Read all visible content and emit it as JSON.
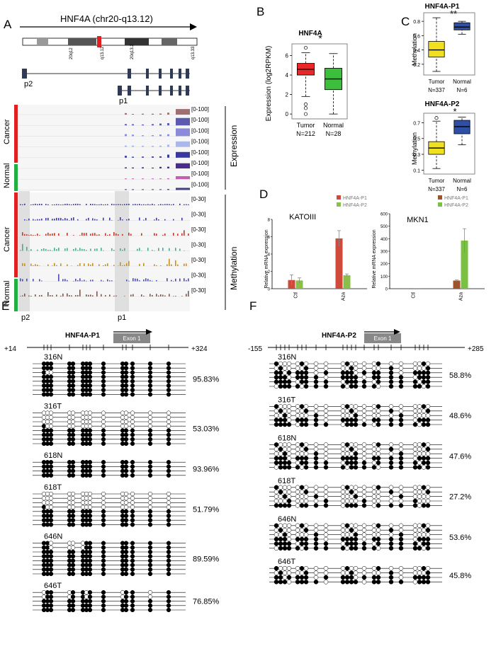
{
  "panel_labels": {
    "a": "A",
    "b": "B",
    "c": "C",
    "d": "D",
    "e": "E",
    "f": "F"
  },
  "panel_a": {
    "title": "HNF4A (chr20-q13.12)",
    "bands": [
      "20q12",
      "q13.12",
      "20q13.2",
      "q13.33"
    ],
    "promoters": {
      "p2": "p2",
      "p1": "p1"
    },
    "groups": {
      "cancer": "Cancer",
      "normal": "Normal"
    },
    "sections": {
      "expression": "Expression",
      "methylation": "Methylation"
    },
    "expr_range": "[0-100]",
    "meth_range": "[0-30]",
    "expression_track_colors": [
      "#a07070",
      "#5a5ab0",
      "#8a8ad8",
      "#aab8e8",
      "#3838a0",
      "#4a2c8a",
      "#c060b0",
      "#404080"
    ],
    "methylation_track_colors": [
      "#3a3aa8",
      "#3a3aa8",
      "#c03a2a",
      "#40b090",
      "#c89020",
      "#4a4ab0",
      "#7a5a50"
    ]
  },
  "panel_b": {
    "title": "HNF4A",
    "ylabel": "Expression (log2RPKM)",
    "significance": "*",
    "chart_data": {
      "type": "box",
      "title": "HNF4A",
      "ylabel": "Expression (log2RPKM)",
      "ylim": [
        -0.5,
        7.2
      ],
      "yticks": [
        0,
        2,
        4,
        6
      ],
      "groups": [
        {
          "name": "Tumor",
          "n": "N=212",
          "color": "#e8282a",
          "whisker_low": 1.8,
          "q1": 4.0,
          "median": 4.6,
          "q3": 5.2,
          "whisker_high": 6.3,
          "outliers": [
            1.0,
            0.6,
            6.8,
            0.0
          ]
        },
        {
          "name": "Normal",
          "n": "N=28",
          "color": "#3cc03c",
          "whisker_low": 0.0,
          "q1": 2.5,
          "median": 3.6,
          "q3": 4.7,
          "whisker_high": 6.2,
          "outliers": []
        }
      ]
    }
  },
  "panel_c": {
    "charts": [
      {
        "title": "HNF4A-P1",
        "significance": "**",
        "ylabel": "Methylation",
        "ylim": [
          0.05,
          0.92
        ],
        "yticks": [
          0.2,
          0.4,
          0.6,
          0.8
        ],
        "groups": [
          {
            "name": "Tumor",
            "n": "N=337",
            "color": "#f0e020",
            "whisker_low": 0.1,
            "q1": 0.3,
            "median": 0.4,
            "q3": 0.52,
            "whisker_high": 0.85,
            "outliers": []
          },
          {
            "name": "Normal",
            "n": "N=6",
            "color": "#2d4fa8",
            "whisker_low": 0.62,
            "q1": 0.68,
            "median": 0.72,
            "q3": 0.78,
            "whisker_high": 0.8,
            "outliers": []
          }
        ]
      },
      {
        "title": "HNF4A-P2",
        "significance": "*",
        "ylabel": "Methylation",
        "ylim": [
          0.05,
          0.82
        ],
        "yticks": [
          0.1,
          0.3,
          0.5,
          0.7
        ],
        "groups": [
          {
            "name": "Tumor",
            "n": "N=337",
            "color": "#f0e020",
            "whisker_low": 0.12,
            "q1": 0.3,
            "median": 0.38,
            "q3": 0.46,
            "whisker_high": 0.72,
            "outliers": [
              0.76
            ]
          },
          {
            "name": "Normal",
            "n": "N=6",
            "color": "#2d4fa8",
            "whisker_low": 0.42,
            "q1": 0.56,
            "median": 0.65,
            "q3": 0.73,
            "whisker_high": 0.77,
            "outliers": []
          }
        ]
      }
    ]
  },
  "panel_d": {
    "ylabel": "Relative mRNA expression",
    "charts": [
      {
        "type": "bar",
        "title": "KATOIII",
        "categories": [
          "Ctl",
          "Aza"
        ],
        "series": [
          {
            "name": "HNF4A-P1",
            "color": "#cf4a3a",
            "values": [
              1.0,
              5.8
            ]
          },
          {
            "name": "HNF4A-P2",
            "color": "#8bbf4a",
            "values": [
              0.95,
              1.55
            ]
          }
        ],
        "errors": [
          [
            0.6,
            0.9
          ],
          [
            0.3,
            0.15
          ]
        ],
        "ylim": [
          0,
          8
        ],
        "yticks": [
          0,
          2,
          4,
          6,
          8
        ]
      },
      {
        "type": "bar",
        "title": "MKN1",
        "categories": [
          "Ctl",
          "Aza"
        ],
        "series": [
          {
            "name": "HNF4A-P1",
            "color": "#a0522d",
            "values": [
              0.5,
              65
            ]
          },
          {
            "name": "HNF4A-P2",
            "color": "#7ac142",
            "values": [
              0.5,
              385
            ]
          }
        ],
        "errors": [
          [
            0,
            5
          ],
          [
            0,
            95
          ]
        ],
        "ylim": [
          0,
          600
        ],
        "yticks": [
          0,
          100,
          200,
          300,
          400,
          500,
          600
        ]
      }
    ]
  },
  "panel_e": {
    "title": "HNF4A-P1",
    "exon": "Exon 1",
    "left_coord": "+14",
    "right_coord": "+324",
    "samples": [
      {
        "label": "316N",
        "percent": "95.83%",
        "rows": 8,
        "meth_fraction": 0.96
      },
      {
        "label": "316T",
        "percent": "53.03%",
        "rows": 8,
        "meth_fraction": 0.53
      },
      {
        "label": "618N",
        "percent": "93.96%",
        "rows": 4,
        "meth_fraction": 0.94
      },
      {
        "label": "618T",
        "percent": "51.79%",
        "rows": 8,
        "meth_fraction": 0.52
      },
      {
        "label": "646N",
        "percent": "89.59%",
        "rows": 8,
        "meth_fraction": 0.9
      },
      {
        "label": "646T",
        "percent": "76.85%",
        "rows": 5,
        "meth_fraction": 0.77
      }
    ]
  },
  "panel_f": {
    "title": "HNF4A-P2",
    "exon": "Exon 1",
    "left_coord": "-155",
    "right_coord": "+285",
    "samples": [
      {
        "label": "316N",
        "percent": "58.8%",
        "rows": 6,
        "meth_fraction": 0.59
      },
      {
        "label": "316T",
        "percent": "48.6%",
        "rows": 5,
        "meth_fraction": 0.49
      },
      {
        "label": "618N",
        "percent": "47.6%",
        "rows": 6,
        "meth_fraction": 0.48
      },
      {
        "label": "618T",
        "percent": "27.2%",
        "rows": 5,
        "meth_fraction": 0.27
      },
      {
        "label": "646N",
        "percent": "53.6%",
        "rows": 6,
        "meth_fraction": 0.54
      },
      {
        "label": "646T",
        "percent": "45.8%",
        "rows": 4,
        "meth_fraction": 0.46
      }
    ]
  }
}
